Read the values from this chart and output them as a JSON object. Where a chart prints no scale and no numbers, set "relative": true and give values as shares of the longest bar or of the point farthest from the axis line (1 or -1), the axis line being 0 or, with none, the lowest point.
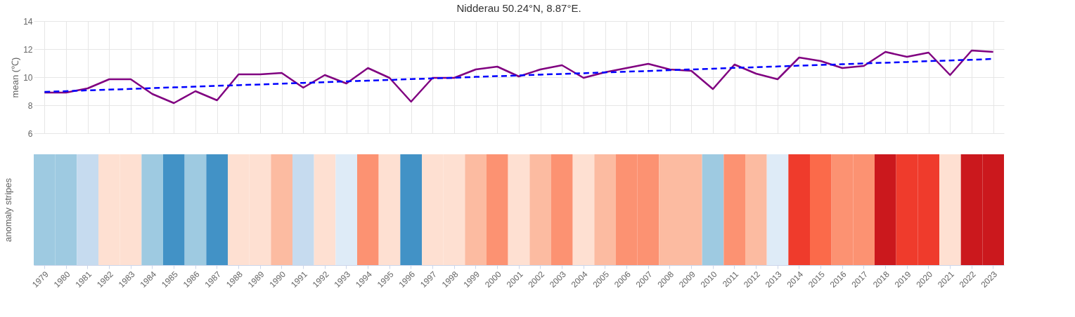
{
  "chart_data": [
    {
      "type": "line",
      "title": "Nidderau 50.24°N, 8.87°E.",
      "ylabel": "mean (℃)",
      "categories": [
        "1979",
        "1980",
        "1981",
        "1982",
        "1983",
        "1984",
        "1985",
        "1986",
        "1987",
        "1988",
        "1989",
        "1990",
        "1991",
        "1992",
        "1993",
        "1994",
        "1995",
        "1996",
        "1997",
        "1998",
        "1999",
        "2000",
        "2001",
        "2002",
        "2003",
        "2004",
        "2005",
        "2006",
        "2007",
        "2008",
        "2009",
        "2010",
        "2011",
        "2012",
        "2013",
        "2014",
        "2015",
        "2016",
        "2017",
        "2018",
        "2019",
        "2020",
        "2021",
        "2022",
        "2023"
      ],
      "series": [
        {
          "color": "#800080",
          "line_style": "solid",
          "values": [
            8.9,
            8.9,
            9.2,
            9.85,
            9.85,
            8.8,
            8.15,
            9.0,
            8.35,
            10.2,
            10.2,
            10.3,
            9.25,
            10.15,
            9.55,
            10.65,
            9.95,
            8.25,
            9.95,
            9.95,
            10.55,
            10.75,
            10.05,
            10.55,
            10.85,
            9.95,
            10.35,
            10.65,
            10.95,
            10.55,
            10.45,
            9.15,
            10.9,
            10.25,
            9.85,
            11.4,
            11.15,
            10.65,
            10.8,
            11.8,
            11.45,
            11.75,
            10.15,
            11.9,
            11.8
          ]
        },
        {
          "color": "#0000ff",
          "line_style": "dashed",
          "values": [
            8.95,
            9.0,
            9.06,
            9.11,
            9.16,
            9.22,
            9.27,
            9.32,
            9.38,
            9.43,
            9.48,
            9.54,
            9.59,
            9.64,
            9.7,
            9.75,
            9.8,
            9.86,
            9.91,
            9.96,
            10.02,
            10.07,
            10.12,
            10.18,
            10.23,
            10.28,
            10.34,
            10.39,
            10.44,
            10.5,
            10.55,
            10.6,
            10.66,
            10.71,
            10.76,
            10.82,
            10.87,
            10.92,
            10.98,
            11.03,
            11.08,
            11.14,
            11.19,
            11.24,
            11.3
          ]
        }
      ],
      "ylim": [
        6,
        14
      ],
      "yticks": [
        6,
        8,
        10,
        12,
        14
      ],
      "grid": true,
      "tick_labels": "y"
    },
    {
      "type": "bar",
      "ylabel": "anomaly stripes",
      "relative": true,
      "categories": [
        "1979",
        "1980",
        "1981",
        "1982",
        "1983",
        "1984",
        "1985",
        "1986",
        "1987",
        "1988",
        "1989",
        "1990",
        "1991",
        "1992",
        "1993",
        "1994",
        "1995",
        "1996",
        "1997",
        "1998",
        "1999",
        "2000",
        "2001",
        "2002",
        "2003",
        "2004",
        "2005",
        "2006",
        "2007",
        "2008",
        "2009",
        "2010",
        "2011",
        "2012",
        "2013",
        "2014",
        "2015",
        "2016",
        "2017",
        "2018",
        "2019",
        "2020",
        "2021",
        "2022",
        "2023"
      ],
      "values": [
        1,
        1,
        1,
        1,
        1,
        1,
        1,
        1,
        1,
        1,
        1,
        1,
        1,
        1,
        1,
        1,
        1,
        1,
        1,
        1,
        1,
        1,
        1,
        1,
        1,
        1,
        1,
        1,
        1,
        1,
        1,
        1,
        1,
        1,
        1,
        1,
        1,
        1,
        1,
        1,
        1,
        1,
        1,
        1,
        1
      ],
      "colors": [
        "#9ecae1",
        "#9ecae1",
        "#c6dbef",
        "#fee0d2",
        "#fee0d2",
        "#9ecae1",
        "#4292c6",
        "#9ecae1",
        "#4292c6",
        "#fee0d2",
        "#fee0d2",
        "#fcbba1",
        "#c6dbef",
        "#fee0d2",
        "#deebf7",
        "#fc9272",
        "#fee0d2",
        "#4292c6",
        "#fee0d2",
        "#fee0d2",
        "#fcbba1",
        "#fc9272",
        "#fee0d2",
        "#fcbba1",
        "#fc9272",
        "#fee0d2",
        "#fcbba1",
        "#fc9272",
        "#fc9272",
        "#fcbba1",
        "#fcbba1",
        "#9ecae1",
        "#fc9272",
        "#fcbba1",
        "#deebf7",
        "#ef3b2c",
        "#fb6a4a",
        "#fc9272",
        "#fc9272",
        "#cb181d",
        "#ef3b2c",
        "#ef3b2c",
        "#fee0d2",
        "#cb181d",
        "#cb181d"
      ],
      "tick_labels": "x"
    }
  ]
}
